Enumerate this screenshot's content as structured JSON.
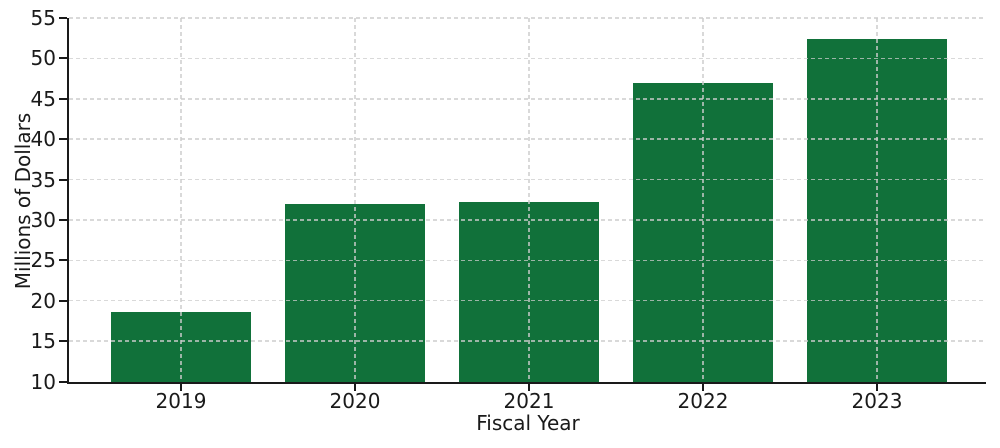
{
  "chart_data": {
    "type": "bar",
    "title": "",
    "xlabel": "Fiscal Year",
    "ylabel": "Millions of Dollars",
    "categories": [
      "2019",
      "2020",
      "2021",
      "2022",
      "2023"
    ],
    "values": [
      18.7,
      32.0,
      32.3,
      47.0,
      52.5
    ],
    "ylim": [
      10,
      55
    ],
    "yticks": [
      10,
      15,
      20,
      25,
      30,
      35,
      40,
      45,
      50,
      55
    ],
    "legend": "none",
    "grid": "dashed gridlines on both axes, drawn over bars",
    "colors": {
      "bar": "#11713A",
      "grid": "#CCCCCC",
      "axis": "#1A1A1A",
      "text": "#1A1A1A",
      "background": "#FFFFFF"
    }
  }
}
